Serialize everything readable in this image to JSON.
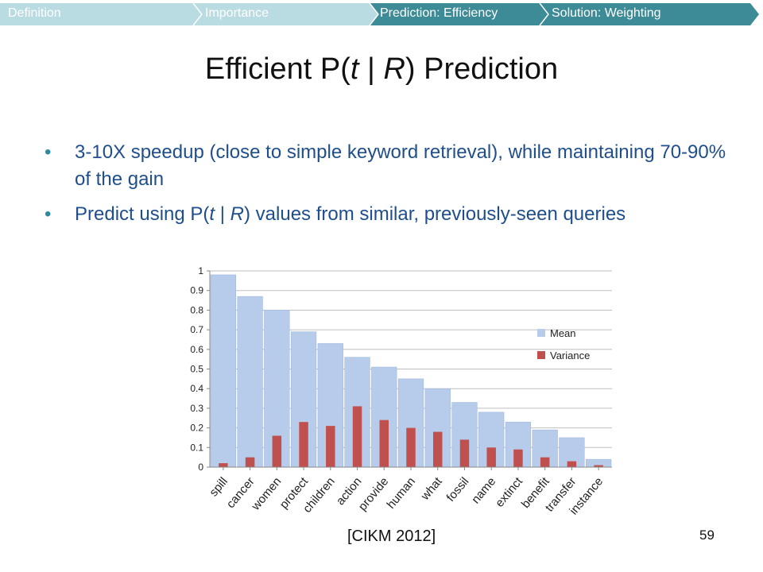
{
  "nav": {
    "tabs": [
      {
        "label": "Definition",
        "active": false
      },
      {
        "label": "Importance",
        "active": false
      },
      {
        "label": "Prediction: Efficiency",
        "active": true
      },
      {
        "label": "Solution: Weighting",
        "active": true
      }
    ],
    "colors": {
      "inactive": "#b9dbe2",
      "active": "#3d8b96"
    }
  },
  "slide": {
    "title_pre": "Efficient P(",
    "title_t": "t",
    "title_mid": " | ",
    "title_r": "R",
    "title_post": ") Prediction",
    "bullet1": "3-10X speedup (close to simple keyword retrieval), while maintaining 70-90% of the gain",
    "bullet2_pre": "Predict using P(",
    "bullet2_t": "t",
    "bullet2_mid": " | ",
    "bullet2_r": "R",
    "bullet2_post": ") values from similar, previously-seen queries",
    "citation": "[CIKM 2012]",
    "page_number": "59"
  },
  "chart_data": {
    "type": "bar",
    "xlabel": "",
    "ylabel": "",
    "ylim": [
      0,
      1
    ],
    "yticks": [
      0,
      0.1,
      0.2,
      0.3,
      0.4,
      0.5,
      0.6,
      0.7,
      0.8,
      0.9,
      1
    ],
    "grid": true,
    "legend": "right",
    "colors": {
      "Mean": "#b7cbea",
      "Variance": "#c0504d"
    },
    "categories": [
      "spill",
      "cancer",
      "women",
      "protect",
      "children",
      "action",
      "provide",
      "human",
      "what",
      "fossil",
      "name",
      "extinct",
      "benefit",
      "transfer",
      "instance"
    ],
    "series": [
      {
        "name": "Mean",
        "values": [
          0.98,
          0.87,
          0.8,
          0.69,
          0.63,
          0.56,
          0.51,
          0.45,
          0.4,
          0.33,
          0.28,
          0.23,
          0.19,
          0.15,
          0.04
        ]
      },
      {
        "name": "Variance",
        "values": [
          0.02,
          0.05,
          0.16,
          0.23,
          0.21,
          0.31,
          0.24,
          0.2,
          0.18,
          0.14,
          0.1,
          0.09,
          0.05,
          0.03,
          0.01
        ]
      }
    ]
  }
}
